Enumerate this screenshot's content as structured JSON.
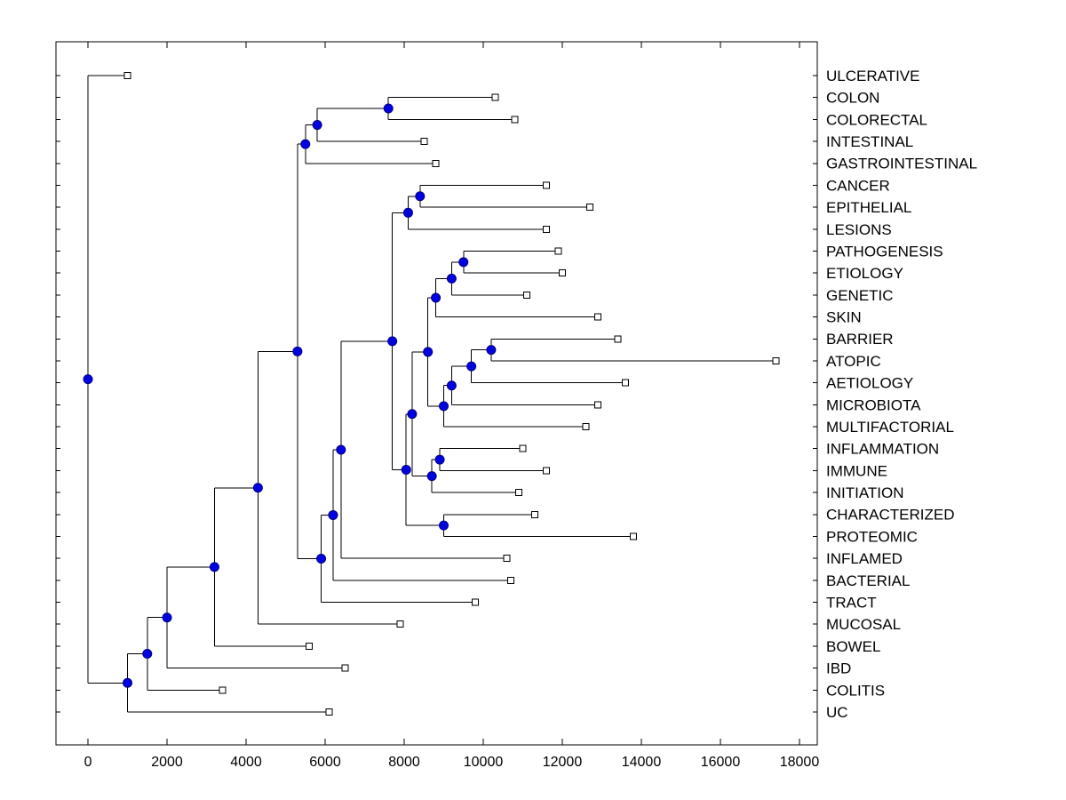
{
  "figure": {
    "background": "#ffffff",
    "axis_color": "#000000",
    "line_color": "#000000",
    "leaf_marker": {
      "shape": "square",
      "fill": "#ffffff",
      "stroke": "#000000",
      "size": 7
    },
    "node_marker": {
      "shape": "circle",
      "fill": "#0000e0",
      "stroke": "#000080",
      "size": 10
    }
  },
  "chart_data": {
    "type": "dendrogram",
    "orientation": "horizontal",
    "title": "",
    "x_axis": {
      "range": [
        -810,
        18450
      ],
      "tick_values": [
        0,
        2000,
        4000,
        6000,
        8000,
        10000,
        12000,
        14000,
        16000,
        18000
      ],
      "tick_labels": [
        "0",
        "2000",
        "4000",
        "6000",
        "8000",
        "10000",
        "12000",
        "14000",
        "16000",
        "18000"
      ]
    },
    "leaf_order": [
      "ULCERATIVE",
      "COLON",
      "COLORECTAL",
      "INTESTINAL",
      "GASTROINTESTINAL",
      "CANCER",
      "EPITHELIAL",
      "LESIONS",
      "PATHOGENESIS",
      "ETIOLOGY",
      "GENETIC",
      "SKIN",
      "BARRIER",
      "ATOPIC",
      "AETIOLOGY",
      "MICROBIOTA",
      "MULTIFACTORIAL",
      "INFLAMMATION",
      "IMMUNE",
      "INITIATION",
      "CHARACTERIZED",
      "PROTEOMIC",
      "INFLAMED",
      "BACTERIAL",
      "TRACT",
      "MUCOSAL",
      "BOWEL",
      "IBD",
      "COLITIS",
      "UC"
    ],
    "tree": {
      "d": 0,
      "c": [
        {
          "leaf": "ULCERATIVE",
          "d": 1000
        },
        {
          "d": 1000,
          "c": [
            {
              "d": 1500,
              "c": [
                {
                  "d": 2000,
                  "c": [
                    {
                      "d": 3200,
                      "c": [
                        {
                          "d": 4300,
                          "c": [
                            {
                              "d": 5300,
                              "c": [
                                {
                                  "d": 5500,
                                  "c": [
                                    {
                                      "d": 5800,
                                      "c": [
                                        {
                                          "d": 7600,
                                          "c": [
                                            {
                                              "leaf": "COLON",
                                              "d": 10300
                                            },
                                            {
                                              "leaf": "COLORECTAL",
                                              "d": 10800
                                            }
                                          ]
                                        },
                                        {
                                          "leaf": "INTESTINAL",
                                          "d": 8500
                                        }
                                      ]
                                    },
                                    {
                                      "leaf": "GASTROINTESTINAL",
                                      "d": 8800
                                    }
                                  ]
                                },
                                {
                                  "d": 5900,
                                  "c": [
                                    {
                                      "d": 6200,
                                      "c": [
                                        {
                                          "d": 6400,
                                          "c": [
                                            {
                                              "d": 7700,
                                              "c": [
                                                {
                                                  "d": 8100,
                                                  "c": [
                                                    {
                                                      "d": 8400,
                                                      "c": [
                                                        {
                                                          "leaf": "CANCER",
                                                          "d": 11600
                                                        },
                                                        {
                                                          "leaf": "EPITHELIAL",
                                                          "d": 12700
                                                        }
                                                      ]
                                                    },
                                                    {
                                                      "leaf": "LESIONS",
                                                      "d": 11600
                                                    }
                                                  ]
                                                },
                                                {
                                                  "d": 8050,
                                                  "c": [
                                                    {
                                                      "d": 8200,
                                                      "c": [
                                                        {
                                                          "d": 8600,
                                                          "c": [
                                                            {
                                                              "d": 8800,
                                                              "c": [
                                                                {
                                                                  "d": 9200,
                                                                  "c": [
                                                                    {
                                                                      "d": 9500,
                                                                      "c": [
                                                                        {
                                                                          "leaf": "PATHOGENESIS",
                                                                          "d": 11900
                                                                        },
                                                                        {
                                                                          "leaf": "ETIOLOGY",
                                                                          "d": 12000
                                                                        }
                                                                      ]
                                                                    },
                                                                    {
                                                                      "leaf": "GENETIC",
                                                                      "d": 11100
                                                                    }
                                                                  ]
                                                                },
                                                                {
                                                                  "leaf": "SKIN",
                                                                  "d": 12900
                                                                }
                                                              ]
                                                            },
                                                            {
                                                              "d": 9000,
                                                              "c": [
                                                                {
                                                                  "d": 9200,
                                                                  "c": [
                                                                    {
                                                                      "d": 9700,
                                                                      "c": [
                                                                        {
                                                                          "d": 10200,
                                                                          "c": [
                                                                            {
                                                                              "leaf": "BARRIER",
                                                                              "d": 13400
                                                                            },
                                                                            {
                                                                              "leaf": "ATOPIC",
                                                                              "d": 17400
                                                                            }
                                                                          ]
                                                                        },
                                                                        {
                                                                          "leaf": "AETIOLOGY",
                                                                          "d": 13600
                                                                        }
                                                                      ]
                                                                    },
                                                                    {
                                                                      "leaf": "MICROBIOTA",
                                                                      "d": 12900
                                                                    }
                                                                  ]
                                                                },
                                                                {
                                                                  "leaf": "MULTIFACTORIAL",
                                                                  "d": 12600
                                                                }
                                                              ]
                                                            }
                                                          ]
                                                        },
                                                        {
                                                          "d": 8700,
                                                          "c": [
                                                            {
                                                              "d": 8900,
                                                              "c": [
                                                                {
                                                                  "leaf": "INFLAMMATION",
                                                                  "d": 11000
                                                                },
                                                                {
                                                                  "leaf": "IMMUNE",
                                                                  "d": 11600
                                                                }
                                                              ]
                                                            },
                                                            {
                                                              "leaf": "INITIATION",
                                                              "d": 10900
                                                            }
                                                          ]
                                                        }
                                                      ]
                                                    },
                                                    {
                                                      "d": 9000,
                                                      "c": [
                                                        {
                                                          "leaf": "CHARACTERIZED",
                                                          "d": 11300
                                                        },
                                                        {
                                                          "leaf": "PROTEOMIC",
                                                          "d": 13800
                                                        }
                                                      ]
                                                    }
                                                  ]
                                                }
                                              ]
                                            },
                                            {
                                              "leaf": "INFLAMED",
                                              "d": 10600
                                            }
                                          ]
                                        },
                                        {
                                          "leaf": "BACTERIAL",
                                          "d": 10700
                                        }
                                      ]
                                    },
                                    {
                                      "leaf": "TRACT",
                                      "d": 9800
                                    }
                                  ]
                                }
                              ]
                            },
                            {
                              "leaf": "MUCOSAL",
                              "d": 7900
                            }
                          ]
                        },
                        {
                          "leaf": "BOWEL",
                          "d": 5600
                        }
                      ]
                    },
                    {
                      "leaf": "IBD",
                      "d": 6500
                    }
                  ]
                },
                {
                  "leaf": "COLITIS",
                  "d": 3400
                }
              ]
            },
            {
              "leaf": "UC",
              "d": 6100
            }
          ]
        }
      ]
    }
  }
}
